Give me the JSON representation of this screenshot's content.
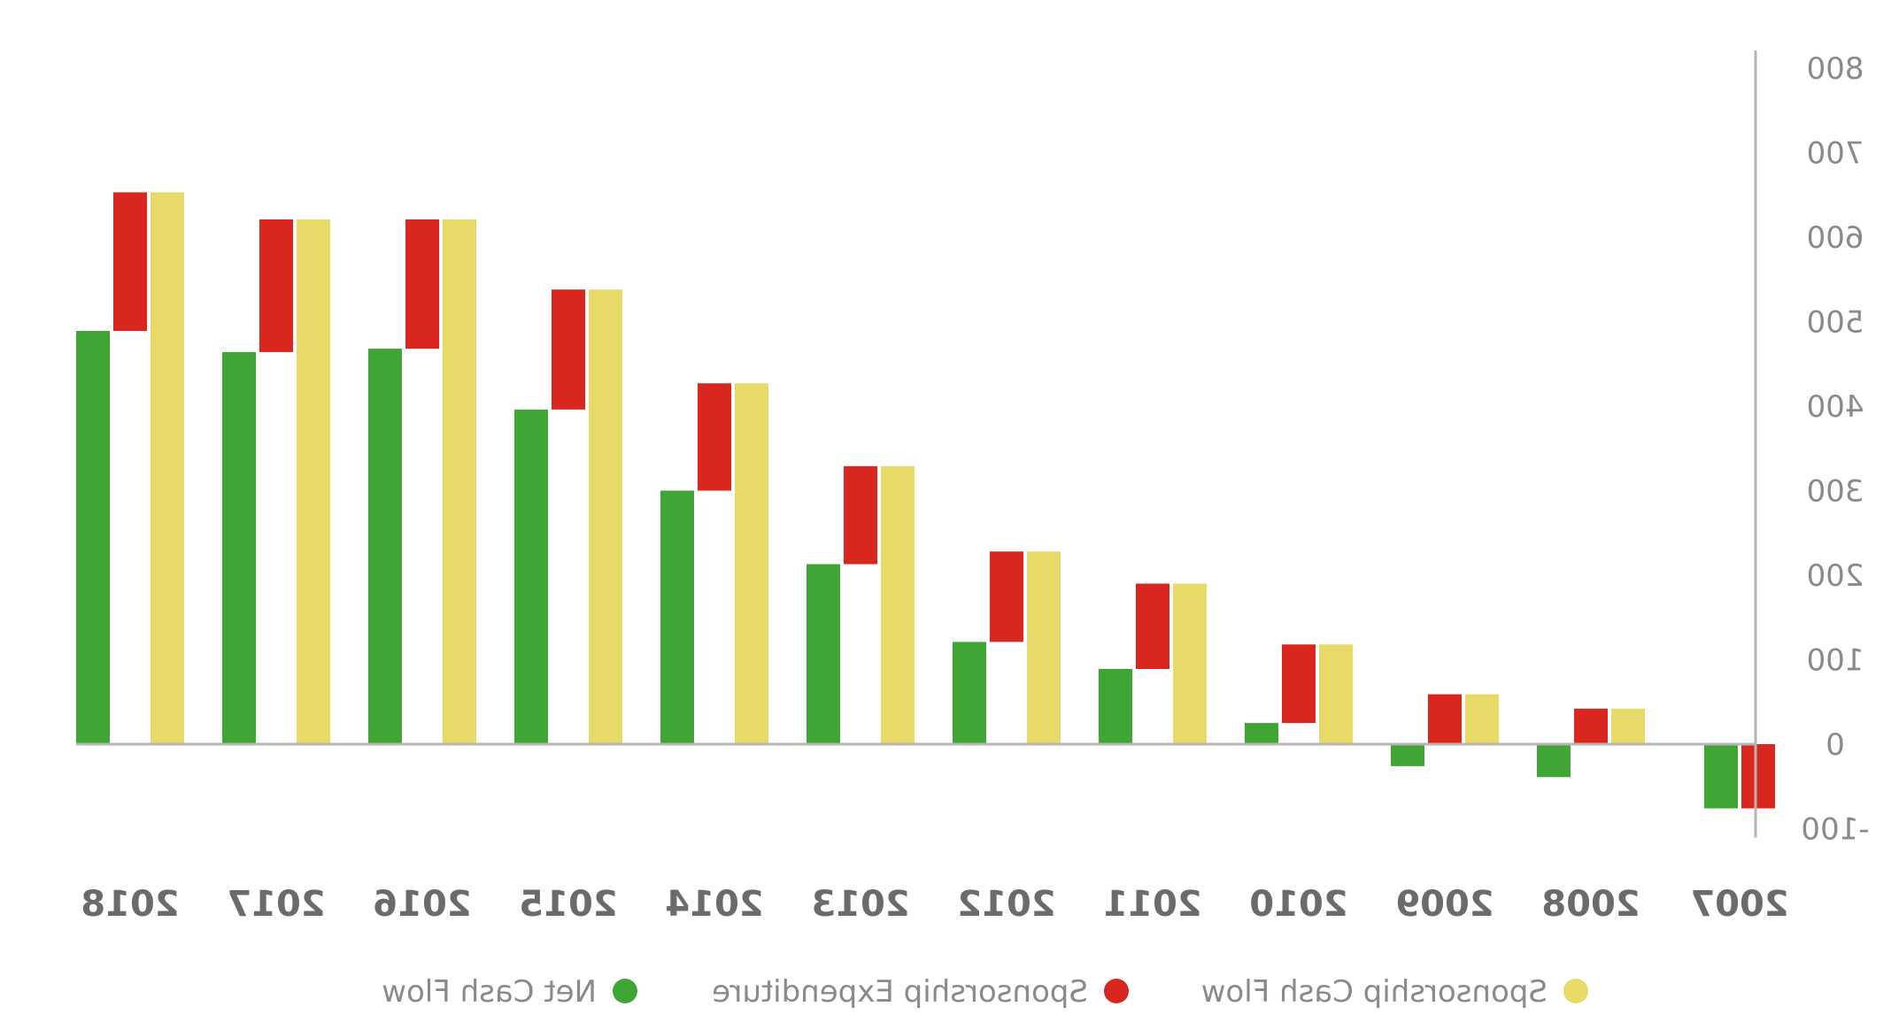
{
  "chart_data": {
    "type": "bar",
    "mirrored": true,
    "title": "",
    "xlabel": "",
    "ylabel": "",
    "ylim": [
      -100,
      800
    ],
    "yticks": [
      -100,
      0,
      100,
      200,
      300,
      400,
      500,
      600,
      700,
      800
    ],
    "ytick_labels": [
      "-100",
      "0",
      "100",
      "200",
      "300",
      "400",
      "500",
      "600",
      "700",
      "800"
    ],
    "y_axis_position": "right",
    "grid": false,
    "legend_position": "bottom",
    "categories": [
      "2007",
      "2008",
      "2009",
      "2010",
      "2011",
      "2012",
      "2013",
      "2014",
      "2015",
      "2016",
      "2017",
      "2018"
    ],
    "series": [
      {
        "name": "Net Cash Flow",
        "color": "#3fa535",
        "kind": "bar-from-zero",
        "values": [
          -76,
          -39,
          -26,
          25,
          89,
          121,
          213,
          300,
          396,
          468,
          464,
          489
        ]
      },
      {
        "name": "Sponsorship Expenditure",
        "color": "#d9261f",
        "kind": "floating-bar",
        "values": [
          -76,
          42,
          59,
          93,
          101,
          107,
          116,
          127,
          142,
          153,
          157,
          164
        ]
      },
      {
        "name": "Sponsorship Cash Flow",
        "color": "#e8da69",
        "kind": "bar-from-zero",
        "values": [
          0,
          42,
          59,
          118,
          190,
          228,
          329,
          427,
          538,
          621,
          621,
          653
        ]
      }
    ]
  }
}
